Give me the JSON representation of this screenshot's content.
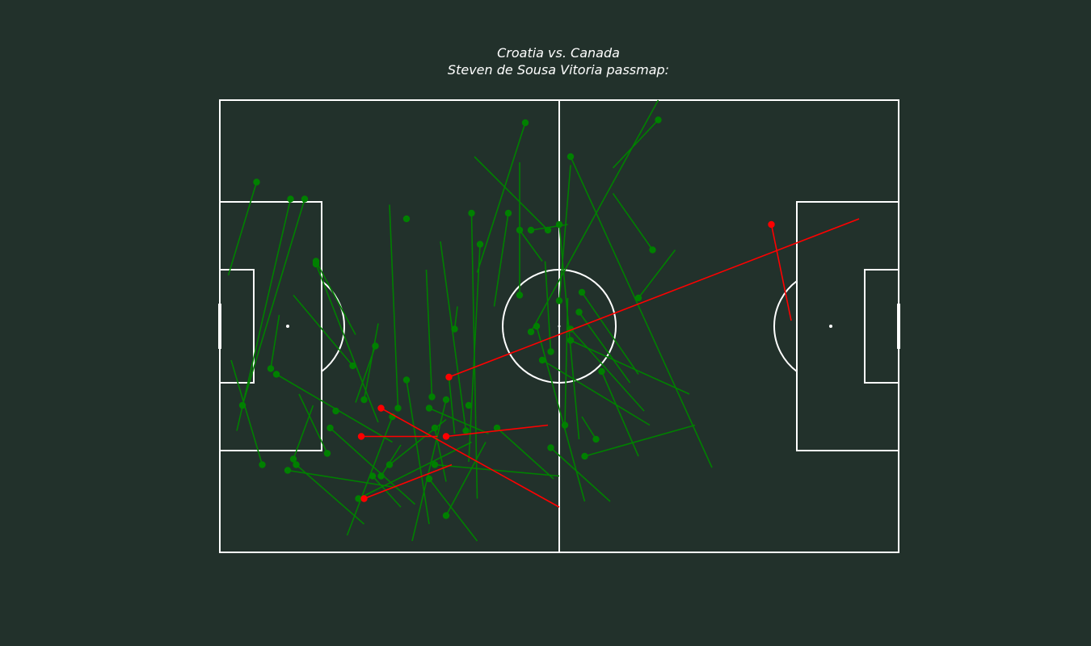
{
  "title_lines": [
    "Croatia vs. Canada",
    "Steven de Sousa Vitoria passmap:"
  ],
  "colors": {
    "background": "#22312b",
    "pitch_lines": "#ffffff",
    "completed_pass": "#008000",
    "failed_pass": "#ff0000"
  },
  "chart_data": {
    "type": "scatter",
    "subtype": "passmap",
    "title": "Croatia vs. Canada\nSteven de Sousa Vitoria passmap:",
    "pitch": {
      "length": 120,
      "width": 80
    },
    "xlim": [
      0,
      120
    ],
    "ylim": [
      0,
      80
    ],
    "grid": false,
    "legend": "none",
    "series": [
      {
        "name": "",
        "outcome": "complete",
        "passes": [
          {
            "start": [
              54,
              4
            ],
            "end": [
              45.5,
              30.5
            ]
          },
          {
            "start": [
              62,
              10
            ],
            "end": [
              87,
              65
            ]
          },
          {
            "start": [
              60,
              22
            ],
            "end": [
              63.5,
              60
            ]
          },
          {
            "start": [
              51,
              20
            ],
            "end": [
              48.5,
              36.5
            ]
          },
          {
            "start": [
              44.5,
              20
            ],
            "end": [
              45.5,
              70.5
            ]
          },
          {
            "start": [
              46,
              25.5
            ],
            "end": [
              44,
              64
            ]
          },
          {
            "start": [
              33,
              21
            ]
          },
          {
            "start": [
              44,
              54
            ]
          },
          {
            "start": [
              15,
              17.5
            ],
            "end": [
              4,
              54
            ]
          },
          {
            "start": [
              25.5,
              53
            ],
            "end": [
              28,
              39.5
            ]
          },
          {
            "start": [
              38,
              58
            ],
            "end": [
              40,
              67.5
            ]
          },
          {
            "start": [
              33,
              49.5
            ],
            "end": [
              37,
              75
            ]
          },
          {
            "start": [
              37,
              67
            ],
            "end": [
              45.5,
              78
            ]
          },
          {
            "start": [
              40,
              73.5
            ],
            "end": [
              47,
              60.5
            ]
          },
          {
            "start": [
              37.5,
              52.5
            ],
            "end": [
              36.5,
              30
            ]
          },
          {
            "start": [
              40,
              53
            ],
            "end": [
              34,
              78
            ]
          },
          {
            "start": [
              40.5,
              49
            ],
            "end": [
              41.5,
              59
            ]
          },
          {
            "start": [
              43.5,
              58.5
            ],
            "end": [
              39,
              25
            ]
          },
          {
            "start": [
              41.5,
              40.5
            ],
            "end": [
              42,
              36.5
            ]
          },
          {
            "start": [
              23.5,
              47
            ],
            "end": [
              13,
              34.5
            ]
          },
          {
            "start": [
              24.5,
              70.5
            ],
            "end": [
              44.5,
              60.5
            ]
          },
          {
            "start": [
              20.5,
              55
            ]
          },
          {
            "start": [
              7.5,
              64.5
            ],
            "end": [
              2,
              46
            ]
          },
          {
            "start": [
              9,
              47.5
            ],
            "end": [
              10.5,
              38
            ]
          },
          {
            "start": [
              13.5,
              64.5
            ],
            "end": [
              25.5,
              75
            ]
          },
          {
            "start": [
              12,
              65.5
            ],
            "end": [
              31,
              68.5
            ]
          },
          {
            "start": [
              19.5,
              58
            ],
            "end": [
              34.5,
              71.5
            ]
          },
          {
            "start": [
              31.5,
              54.5
            ],
            "end": [
              30,
              18.5
            ]
          },
          {
            "start": [
              37,
              54.5
            ],
            "end": [
              47.5,
              59
            ]
          },
          {
            "start": [
              28.5,
              66.5
            ],
            "end": [
              32,
              61
            ]
          },
          {
            "start": [
              17,
              28.5
            ],
            "end": [
              24,
              41.5
            ]
          },
          {
            "start": [
              6.5,
              14.5
            ],
            "end": [
              1.5,
              31
            ]
          },
          {
            "start": [
              27,
              66.5
            ],
            "end": [
              32,
              72
            ]
          },
          {
            "start": [
              30.5,
              56
            ],
            "end": [
              22.5,
              77
            ]
          },
          {
            "start": [
              19,
              62.5
            ],
            "end": [
              14,
              52
            ]
          },
          {
            "start": [
              4,
              54
            ]
          },
          {
            "start": [
              10,
              48.5
            ],
            "end": [
              30.5,
              60.5
            ]
          },
          {
            "start": [
              17,
              29
            ],
            "end": [
              28,
              57
            ]
          },
          {
            "start": [
              27.5,
              43.5
            ],
            "end": [
              24,
              53.5
            ]
          },
          {
            "start": [
              12.5,
              17.5
            ],
            "end": [
              3,
              58.5
            ]
          },
          {
            "start": [
              13,
              63.5
            ],
            "end": [
              16.5,
              54
            ]
          },
          {
            "start": [
              30,
              64.5
            ],
            "end": [
              40,
              56.5
            ]
          },
          {
            "start": [
              38,
              64.5
            ],
            "end": [
              60,
              66.5
            ]
          },
          {
            "start": [
              64.5,
              63
            ],
            "end": [
              84,
              57.5
            ]
          },
          {
            "start": [
              58.5,
              61.5
            ],
            "end": [
              69,
              71
            ]
          },
          {
            "start": [
              67.5,
              48
            ],
            "end": [
              74,
              63
            ]
          },
          {
            "start": [
              62,
              42.5
            ],
            "end": [
              83,
              52
            ]
          },
          {
            "start": [
              66.5,
              60
            ],
            "end": [
              64,
              56
            ]
          },
          {
            "start": [
              57,
              46
            ],
            "end": [
              76,
              57.5
            ]
          },
          {
            "start": [
              62,
              40.5
            ],
            "end": [
              75,
              55
            ]
          },
          {
            "start": [
              63.5,
              37.5
            ],
            "end": [
              72.5,
              50
            ]
          },
          {
            "start": [
              64,
              34
            ],
            "end": [
              74,
              48.5
            ]
          },
          {
            "start": [
              60,
              35.5
            ],
            "end": [
              62,
              11.5
            ]
          },
          {
            "start": [
              56,
              40
            ],
            "end": [
              64.5,
              71
            ]
          },
          {
            "start": [
              61,
              57.5
            ],
            "end": [
              61.5,
              35
            ]
          },
          {
            "start": [
              58.5,
              44.5
            ],
            "end": [
              57.5,
              28.5
            ]
          },
          {
            "start": [
              55,
              41
            ],
            "end": [
              77.5,
              0
            ]
          },
          {
            "start": [
              55,
              23
            ],
            "end": [
              61.5,
              22
            ]
          },
          {
            "start": [
              53,
              23
            ],
            "end": [
              57,
              28.5
            ]
          },
          {
            "start": [
              58,
              23
            ],
            "end": [
              45,
              10
            ]
          },
          {
            "start": [
              76.5,
              26.5
            ],
            "end": [
              69.5,
              16.5
            ]
          },
          {
            "start": [
              74,
              35
            ],
            "end": [
              80.5,
              26.5
            ]
          },
          {
            "start": [
              77.5,
              3.5
            ],
            "end": [
              69.5,
              12
            ]
          },
          {
            "start": [
              53,
              34.5
            ],
            "end": [
              53,
              11
            ]
          },
          {
            "start": [
              49,
              58
            ],
            "end": [
              59,
              67
            ]
          }
        ]
      },
      {
        "name": "",
        "outcome": "incomplete",
        "passes": [
          {
            "start": [
              25.5,
              70.5
            ],
            "end": [
              41,
              64.5
            ]
          },
          {
            "start": [
              25,
              59.5
            ],
            "end": [
              38.5,
              59.5
            ]
          },
          {
            "start": [
              40,
              59.5
            ],
            "end": [
              58,
              57.5
            ]
          },
          {
            "start": [
              28.5,
              54.5
            ],
            "end": [
              60,
              72
            ]
          },
          {
            "start": [
              40.5,
              49
            ],
            "end": [
              113,
              21
            ]
          },
          {
            "start": [
              97.5,
              22
            ],
            "end": [
              101,
              39
            ]
          }
        ]
      }
    ]
  }
}
